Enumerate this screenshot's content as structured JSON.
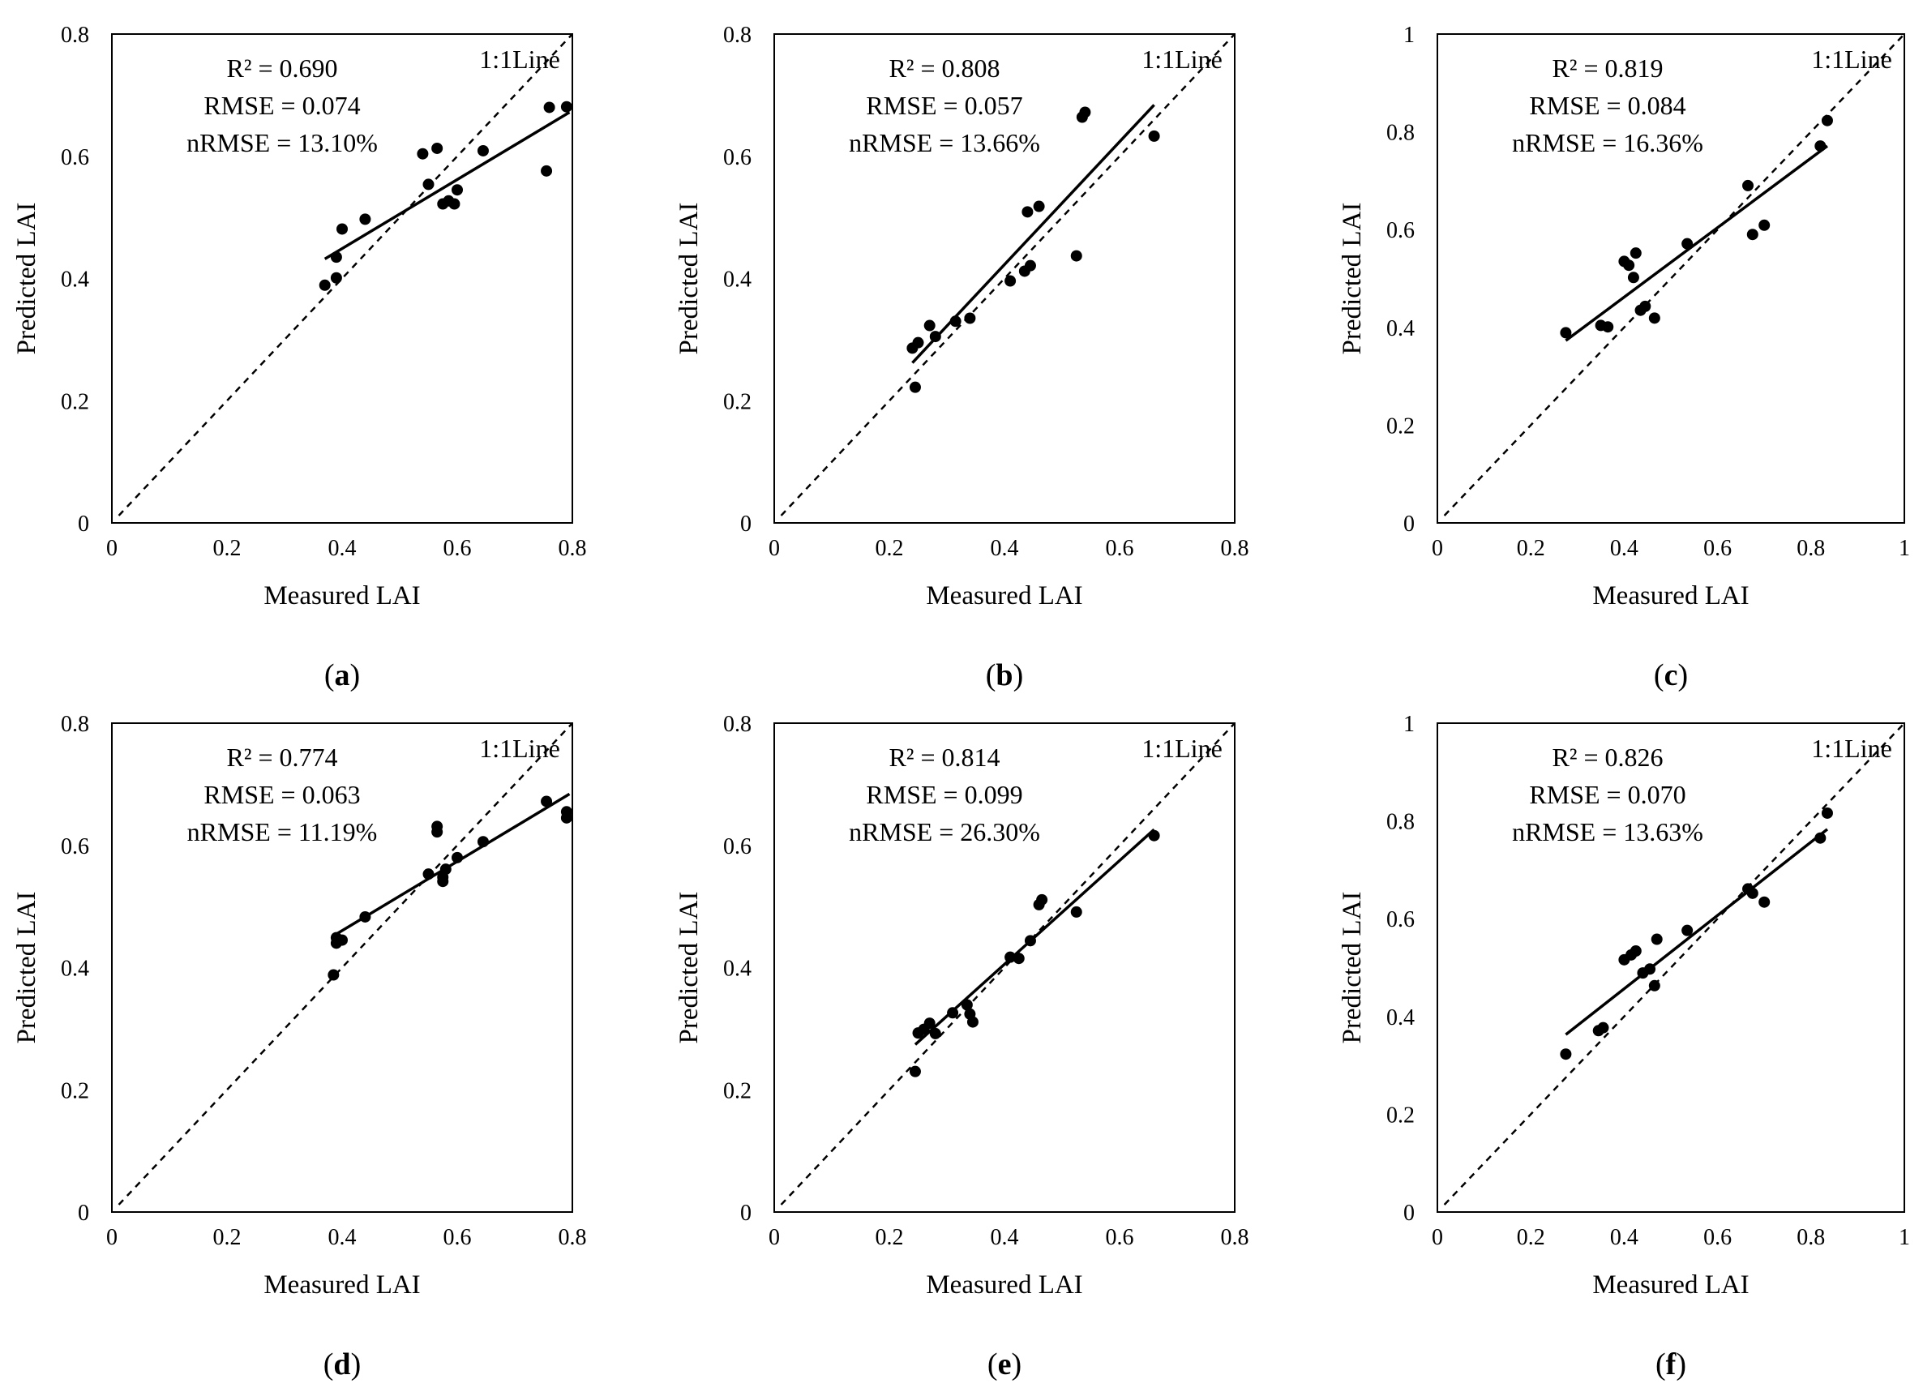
{
  "figure": {
    "colors": {
      "points": "#000000",
      "fit_line": "#000000",
      "one_to_one": "#000000",
      "frame": "#000000"
    }
  },
  "chart_data": [
    {
      "panel": "a",
      "type": "scatter",
      "xlabel": "Measured LAI",
      "ylabel": "Predicted LAI",
      "xlim": [
        0,
        0.8
      ],
      "ylim": [
        0,
        0.8
      ],
      "xticks": [
        "0",
        "0.2",
        "0.4",
        "0.6",
        "0.8"
      ],
      "yticks": [
        "0",
        "0.2",
        "0.4",
        "0.6",
        "0.8"
      ],
      "stats": [
        "R² = 0.690",
        "RMSE = 0.074",
        "nRMSE = 13.10%"
      ],
      "line_label": "1:1Line",
      "fit": [
        [
          0.37,
          0.432
        ],
        [
          0.795,
          0.672
        ]
      ],
      "points": [
        [
          0.37,
          0.389
        ],
        [
          0.39,
          0.401
        ],
        [
          0.39,
          0.435
        ],
        [
          0.4,
          0.481
        ],
        [
          0.44,
          0.497
        ],
        [
          0.54,
          0.604
        ],
        [
          0.55,
          0.554
        ],
        [
          0.565,
          0.613
        ],
        [
          0.575,
          0.522
        ],
        [
          0.585,
          0.527
        ],
        [
          0.595,
          0.522
        ],
        [
          0.6,
          0.545
        ],
        [
          0.645,
          0.609
        ],
        [
          0.755,
          0.576
        ],
        [
          0.76,
          0.68
        ],
        [
          0.79,
          0.681
        ]
      ]
    },
    {
      "panel": "b",
      "type": "scatter",
      "xlabel": "Measured LAI",
      "ylabel": "Predicted LAI",
      "xlim": [
        0,
        0.8
      ],
      "ylim": [
        0,
        0.8
      ],
      "xticks": [
        "0",
        "0.2",
        "0.4",
        "0.6",
        "0.8"
      ],
      "yticks": [
        "0",
        "0.2",
        "0.4",
        "0.6",
        "0.8"
      ],
      "stats": [
        "R² = 0.808",
        "RMSE = 0.057",
        "nRMSE = 13.66%"
      ],
      "line_label": "1:1Line",
      "fit": [
        [
          0.24,
          0.262
        ],
        [
          0.66,
          0.684
        ]
      ],
      "points": [
        [
          0.24,
          0.286
        ],
        [
          0.245,
          0.222
        ],
        [
          0.25,
          0.295
        ],
        [
          0.27,
          0.323
        ],
        [
          0.28,
          0.305
        ],
        [
          0.315,
          0.33
        ],
        [
          0.34,
          0.335
        ],
        [
          0.41,
          0.396
        ],
        [
          0.435,
          0.412
        ],
        [
          0.44,
          0.509
        ],
        [
          0.445,
          0.421
        ],
        [
          0.46,
          0.518
        ],
        [
          0.525,
          0.437
        ],
        [
          0.535,
          0.664
        ],
        [
          0.54,
          0.672
        ],
        [
          0.66,
          0.633
        ]
      ]
    },
    {
      "panel": "c",
      "type": "scatter",
      "xlabel": "Measured LAI",
      "ylabel": "Predicted LAI",
      "xlim": [
        0,
        1
      ],
      "ylim": [
        0,
        1
      ],
      "xticks": [
        "0",
        "0.2",
        "0.4",
        "0.6",
        "0.8",
        "1"
      ],
      "yticks": [
        "0",
        "0.2",
        "0.4",
        "0.6",
        "0.8",
        "1"
      ],
      "stats": [
        "R² = 0.819",
        "RMSE = 0.084",
        "nRMSE = 16.36%"
      ],
      "line_label": "1:1Line",
      "fit": [
        [
          0.275,
          0.373
        ],
        [
          0.835,
          0.771
        ]
      ],
      "points": [
        [
          0.275,
          0.389
        ],
        [
          0.35,
          0.404
        ],
        [
          0.365,
          0.401
        ],
        [
          0.4,
          0.535
        ],
        [
          0.41,
          0.527
        ],
        [
          0.42,
          0.502
        ],
        [
          0.425,
          0.552
        ],
        [
          0.435,
          0.435
        ],
        [
          0.445,
          0.443
        ],
        [
          0.465,
          0.419
        ],
        [
          0.535,
          0.571
        ],
        [
          0.665,
          0.69
        ],
        [
          0.675,
          0.59
        ],
        [
          0.7,
          0.609
        ],
        [
          0.82,
          0.771
        ],
        [
          0.835,
          0.823
        ]
      ]
    },
    {
      "panel": "d",
      "type": "scatter",
      "xlabel": "Measured LAI",
      "ylabel": "Predicted LAI",
      "xlim": [
        0,
        0.8
      ],
      "ylim": [
        0,
        0.8
      ],
      "xticks": [
        "0",
        "0.2",
        "0.4",
        "0.6",
        "0.8"
      ],
      "yticks": [
        "0",
        "0.2",
        "0.4",
        "0.6",
        "0.8"
      ],
      "stats": [
        "R² = 0.774",
        "RMSE = 0.063",
        "nRMSE = 11.19%"
      ],
      "line_label": "1:1Line",
      "fit": [
        [
          0.385,
          0.452
        ],
        [
          0.795,
          0.684
        ]
      ],
      "points": [
        [
          0.385,
          0.388
        ],
        [
          0.39,
          0.44
        ],
        [
          0.39,
          0.449
        ],
        [
          0.4,
          0.445
        ],
        [
          0.44,
          0.483
        ],
        [
          0.55,
          0.553
        ],
        [
          0.565,
          0.622
        ],
        [
          0.565,
          0.631
        ],
        [
          0.575,
          0.541
        ],
        [
          0.575,
          0.548
        ],
        [
          0.58,
          0.561
        ],
        [
          0.6,
          0.58
        ],
        [
          0.645,
          0.606
        ],
        [
          0.755,
          0.672
        ],
        [
          0.79,
          0.645
        ],
        [
          0.79,
          0.655
        ]
      ]
    },
    {
      "panel": "e",
      "type": "scatter",
      "xlabel": "Measured LAI",
      "ylabel": "Predicted LAI",
      "xlim": [
        0,
        0.8
      ],
      "ylim": [
        0,
        0.8
      ],
      "xticks": [
        "0",
        "0.2",
        "0.4",
        "0.6",
        "0.8"
      ],
      "yticks": [
        "0",
        "0.2",
        "0.4",
        "0.6",
        "0.8"
      ],
      "stats": [
        "R² = 0.814",
        "RMSE = 0.099",
        "nRMSE = 26.30%"
      ],
      "line_label": "1:1Line",
      "fit": [
        [
          0.245,
          0.274
        ],
        [
          0.66,
          0.626
        ]
      ],
      "points": [
        [
          0.245,
          0.23
        ],
        [
          0.25,
          0.293
        ],
        [
          0.26,
          0.299
        ],
        [
          0.27,
          0.309
        ],
        [
          0.28,
          0.292
        ],
        [
          0.31,
          0.326
        ],
        [
          0.335,
          0.339
        ],
        [
          0.34,
          0.324
        ],
        [
          0.345,
          0.311
        ],
        [
          0.41,
          0.417
        ],
        [
          0.425,
          0.415
        ],
        [
          0.445,
          0.444
        ],
        [
          0.46,
          0.503
        ],
        [
          0.465,
          0.511
        ],
        [
          0.525,
          0.491
        ],
        [
          0.66,
          0.616
        ]
      ]
    },
    {
      "panel": "f",
      "type": "scatter",
      "xlabel": "Measured LAI",
      "ylabel": "Predicted LAI",
      "xlim": [
        0,
        1
      ],
      "ylim": [
        0,
        1
      ],
      "xticks": [
        "0",
        "0.2",
        "0.4",
        "0.6",
        "0.8",
        "1"
      ],
      "yticks": [
        "0",
        "0.2",
        "0.4",
        "0.6",
        "0.8",
        "1"
      ],
      "stats": [
        "R² = 0.826",
        "RMSE = 0.070",
        "nRMSE = 13.63%"
      ],
      "line_label": "1:1Line",
      "fit": [
        [
          0.275,
          0.363
        ],
        [
          0.835,
          0.783
        ]
      ],
      "points": [
        [
          0.275,
          0.323
        ],
        [
          0.345,
          0.371
        ],
        [
          0.355,
          0.377
        ],
        [
          0.4,
          0.516
        ],
        [
          0.415,
          0.526
        ],
        [
          0.425,
          0.534
        ],
        [
          0.44,
          0.489
        ],
        [
          0.455,
          0.497
        ],
        [
          0.465,
          0.463
        ],
        [
          0.47,
          0.558
        ],
        [
          0.535,
          0.576
        ],
        [
          0.665,
          0.661
        ],
        [
          0.675,
          0.652
        ],
        [
          0.7,
          0.634
        ],
        [
          0.82,
          0.765
        ],
        [
          0.835,
          0.816
        ]
      ]
    }
  ]
}
